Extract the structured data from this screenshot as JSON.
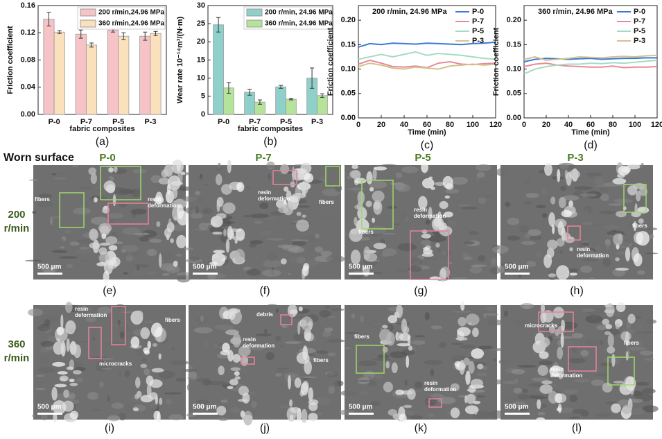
{
  "chart_data": [
    {
      "type": "bar",
      "panel_label": "(a)",
      "y_label": "Friction coefficient",
      "x_label": "fabric composites",
      "categories": [
        "P-0",
        "P-7",
        "P-5",
        "P-3"
      ],
      "series": [
        {
          "name": "200 r/min,24.96 MPa",
          "color": "#f6c3c7",
          "values": [
            0.14,
            0.118,
            0.124,
            0.115
          ],
          "errors": [
            0.01,
            0.006,
            0.003,
            0.006
          ]
        },
        {
          "name": "360 r/min,24.96 MPa",
          "color": "#fbe0bd",
          "values": [
            0.121,
            0.102,
            0.115,
            0.119
          ],
          "errors": [
            0.002,
            0.003,
            0.005,
            0.003
          ]
        }
      ],
      "ylim": [
        0,
        0.16
      ],
      "yticks": [
        {
          "value": 0,
          "label": "0.00"
        },
        0.04,
        0.08,
        0.12,
        0.16
      ]
    },
    {
      "type": "bar",
      "panel_label": "(b)",
      "y_label": "Wear rate 10⁻¹⁴m³/(N·m)",
      "x_label": "fabric composites",
      "categories": [
        "P-0",
        "P-7",
        "P-5",
        "P-3"
      ],
      "series": [
        {
          "name": "200 r/min, 24.96 MPa",
          "color": "#8fd0cb",
          "values": [
            24.7,
            6.1,
            7.6,
            10.0
          ],
          "errors": [
            2.0,
            0.8,
            0.4,
            2.8
          ]
        },
        {
          "name": "360 r/min, 24.96 MPa",
          "color": "#b5e39a",
          "values": [
            7.3,
            3.4,
            4.2,
            5.2
          ],
          "errors": [
            1.5,
            0.6,
            0.2,
            0.5
          ]
        }
      ],
      "ylim": [
        0,
        30
      ],
      "yticks": [
        0,
        5,
        10,
        15,
        20,
        25,
        30
      ]
    },
    {
      "type": "line",
      "panel_label": "(c)",
      "annotation": "200 r/min, 24.96 MPa",
      "y_label": "Friction coefficient",
      "x_label": "Time (min)",
      "x": [
        0,
        10,
        20,
        30,
        40,
        50,
        60,
        70,
        80,
        90,
        100,
        110,
        120
      ],
      "series": [
        {
          "name": "P-0",
          "color": "#3a78d8",
          "values": [
            0.145,
            0.152,
            0.15,
            0.153,
            0.152,
            0.151,
            0.153,
            0.152,
            0.151,
            0.15,
            0.152,
            0.153,
            0.155
          ]
        },
        {
          "name": "P-7",
          "color": "#e8899a",
          "values": [
            0.11,
            0.118,
            0.112,
            0.105,
            0.104,
            0.106,
            0.103,
            0.112,
            0.115,
            0.11,
            0.109,
            0.111,
            0.112
          ]
        },
        {
          "name": "P-5",
          "color": "#a6dbc3",
          "values": [
            0.12,
            0.125,
            0.13,
            0.125,
            0.13,
            0.135,
            0.128,
            0.132,
            0.13,
            0.128,
            0.125,
            0.122,
            0.12
          ]
        },
        {
          "name": "P-3",
          "color": "#d3c389",
          "values": [
            0.105,
            0.112,
            0.108,
            0.102,
            0.1,
            0.104,
            0.102,
            0.1,
            0.106,
            0.108,
            0.11,
            0.108,
            0.11
          ]
        }
      ],
      "xlim": [
        0,
        120
      ],
      "xticks": [
        0,
        20,
        40,
        60,
        80,
        100,
        120
      ],
      "ylim": [
        0,
        0.23
      ],
      "yticks": [
        {
          "value": 0,
          "label": "0.00"
        },
        0.05,
        {
          "value": 0.1,
          "label": "0.10"
        },
        0.15,
        {
          "value": 0.2,
          "label": "0.20"
        }
      ]
    },
    {
      "type": "line",
      "panel_label": "(d)",
      "annotation": "360 r/min, 24.96 MPa",
      "y_label": "Friction coefficient",
      "x_label": "Time (min)",
      "x": [
        0,
        10,
        20,
        30,
        40,
        50,
        60,
        70,
        80,
        90,
        100,
        110,
        120
      ],
      "series": [
        {
          "name": "P-0",
          "color": "#3a78d8",
          "values": [
            0.115,
            0.12,
            0.122,
            0.121,
            0.12,
            0.121,
            0.122,
            0.12,
            0.121,
            0.122,
            0.122,
            0.123,
            0.123
          ]
        },
        {
          "name": "P-7",
          "color": "#e8899a",
          "values": [
            0.105,
            0.11,
            0.112,
            0.108,
            0.106,
            0.105,
            0.104,
            0.104,
            0.106,
            0.103,
            0.104,
            0.104,
            0.105
          ]
        },
        {
          "name": "P-5",
          "color": "#a6dbc3",
          "values": [
            0.09,
            0.1,
            0.105,
            0.108,
            0.11,
            0.11,
            0.112,
            0.111,
            0.113,
            0.112,
            0.114,
            0.116,
            0.118
          ]
        },
        {
          "name": "P-3",
          "color": "#d3c389",
          "values": [
            0.12,
            0.125,
            0.118,
            0.12,
            0.122,
            0.125,
            0.124,
            0.123,
            0.125,
            0.126,
            0.125,
            0.127,
            0.128
          ]
        }
      ],
      "xlim": [
        0,
        120
      ],
      "xticks": [
        0,
        20,
        40,
        60,
        80,
        100,
        120
      ],
      "ylim": [
        0,
        0.23
      ],
      "yticks": [
        {
          "value": 0,
          "label": "0.00"
        },
        0.05,
        {
          "value": 0.1,
          "label": "0.10"
        },
        0.15,
        {
          "value": 0.2,
          "label": "0.20"
        }
      ]
    }
  ],
  "headers": {
    "worn_surface": "Worn surface",
    "columns": [
      "P-0",
      "P-7",
      "P-5",
      "P-3"
    ],
    "rows": [
      "200 r/min",
      "360 r/min"
    ]
  },
  "images": [
    {
      "label": "(e)",
      "scale": "500 μm",
      "notes": [
        {
          "lines": [
            "fibers"
          ]
        },
        {
          "lines": [
            "resin",
            "deformation"
          ]
        }
      ]
    },
    {
      "label": "(f)",
      "scale": "500 μm",
      "notes": [
        {
          "lines": [
            "resin",
            "deformation"
          ]
        },
        {
          "lines": [
            "fibers"
          ]
        }
      ]
    },
    {
      "label": "(g)",
      "scale": "500 μm",
      "notes": [
        {
          "lines": [
            "fibers"
          ]
        },
        {
          "lines": [
            "resin",
            "deformation"
          ]
        }
      ]
    },
    {
      "label": "(h)",
      "scale": "500 μm",
      "notes": [
        {
          "lines": [
            "fibers"
          ]
        },
        {
          "lines": [
            "resin",
            "deformation"
          ]
        }
      ]
    },
    {
      "label": "(i)",
      "scale": "500 μm",
      "notes": [
        {
          "lines": [
            "resin",
            "deformation"
          ]
        },
        {
          "lines": [
            "fibers"
          ]
        },
        {
          "lines": [
            "microcracks"
          ]
        }
      ]
    },
    {
      "label": "(j)",
      "scale": "500 μm",
      "notes": [
        {
          "lines": [
            "debris"
          ]
        },
        {
          "lines": [
            "resin",
            "deformation"
          ]
        },
        {
          "lines": [
            "fibers"
          ]
        }
      ]
    },
    {
      "label": "(k)",
      "scale": "500 μm",
      "notes": [
        {
          "lines": [
            "fibers"
          ]
        },
        {
          "lines": [
            "resin",
            "deformation"
          ]
        }
      ]
    },
    {
      "label": "(l)",
      "scale": "500 μm",
      "notes": [
        {
          "lines": [
            "microcracks"
          ]
        },
        {
          "lines": [
            "resin",
            "deformation"
          ]
        },
        {
          "lines": [
            "fibers"
          ]
        }
      ]
    }
  ]
}
